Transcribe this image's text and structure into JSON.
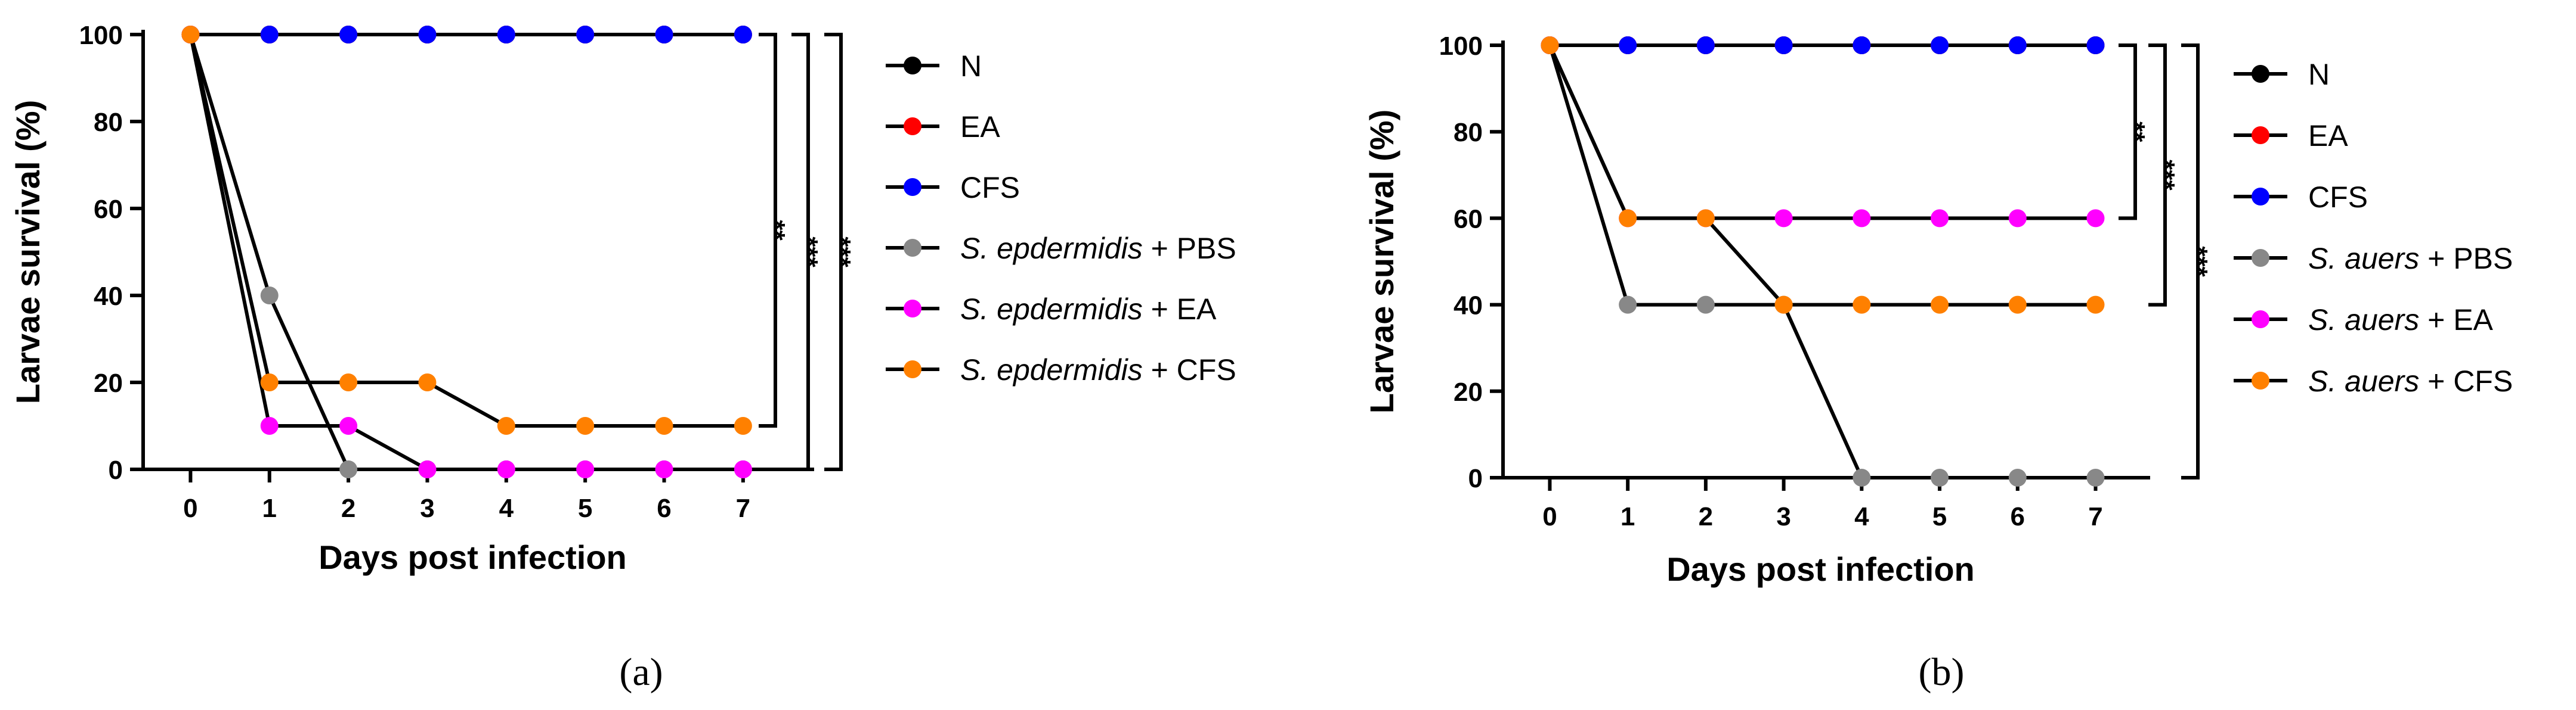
{
  "figure": {
    "panel_a_caption": "(a)",
    "panel_b_caption": "(b)"
  },
  "chart_data": [
    {
      "type": "line",
      "panel": "a",
      "xlabel": "Days post infection",
      "ylabel": "Larvae survival (%)",
      "xlim": [
        -0.6,
        7.9
      ],
      "ylim": [
        0,
        100
      ],
      "xticks": [
        0,
        1,
        2,
        3,
        4,
        5,
        6,
        7
      ],
      "yticks": [
        0,
        20,
        40,
        60,
        80,
        100
      ],
      "x": [
        0,
        1,
        2,
        3,
        4,
        5,
        6,
        7
      ],
      "series": [
        {
          "name": "N",
          "name_italic": "",
          "name_rest": "N",
          "color": "#000000",
          "values": [
            100,
            100,
            100,
            100,
            100,
            100,
            100,
            100
          ]
        },
        {
          "name": "EA",
          "name_italic": "",
          "name_rest": "EA",
          "color": "#ff0000",
          "values": [
            100,
            100,
            100,
            100,
            100,
            100,
            100,
            100
          ]
        },
        {
          "name": "CFS",
          "name_italic": "",
          "name_rest": "CFS",
          "color": "#0000ff",
          "values": [
            100,
            100,
            100,
            100,
            100,
            100,
            100,
            100
          ]
        },
        {
          "name": "S. epdermidis + PBS",
          "name_italic": "S. epdermidis",
          "name_rest": " + PBS",
          "color": "#888888",
          "values": [
            100,
            40,
            0,
            0,
            0,
            0,
            0,
            0
          ]
        },
        {
          "name": "S. epdermidis + EA",
          "name_italic": "S. epdermidis",
          "name_rest": " + EA",
          "color": "#ff00ff",
          "values": [
            100,
            10,
            10,
            0,
            0,
            0,
            0,
            0
          ]
        },
        {
          "name": "S. epdermidis + CFS",
          "name_italic": "S. epdermidis",
          "name_rest": " + CFS",
          "color": "#ff8000",
          "values": [
            100,
            20,
            20,
            20,
            10,
            10,
            10,
            10
          ]
        }
      ],
      "significance": [
        {
          "label": "**",
          "from": 100,
          "to": 10
        },
        {
          "label": "***",
          "from": 100,
          "to": 0
        },
        {
          "label": "***",
          "from": 100,
          "to": 0
        }
      ]
    },
    {
      "type": "line",
      "panel": "b",
      "xlabel": "Days post infection",
      "ylabel": "Larvae survival (%)",
      "xlim": [
        -0.6,
        7.7
      ],
      "ylim": [
        0,
        100
      ],
      "xticks": [
        0,
        1,
        2,
        3,
        4,
        5,
        6,
        7
      ],
      "yticks": [
        0,
        20,
        40,
        60,
        80,
        100
      ],
      "x": [
        0,
        1,
        2,
        3,
        4,
        5,
        6,
        7
      ],
      "series": [
        {
          "name": "N",
          "name_italic": "",
          "name_rest": "N",
          "color": "#000000",
          "values": [
            100,
            100,
            100,
            100,
            100,
            100,
            100,
            100
          ]
        },
        {
          "name": "EA",
          "name_italic": "",
          "name_rest": "EA",
          "color": "#ff0000",
          "values": [
            100,
            100,
            100,
            100,
            100,
            100,
            100,
            100
          ]
        },
        {
          "name": "CFS",
          "name_italic": "",
          "name_rest": "CFS",
          "color": "#0000ff",
          "values": [
            100,
            100,
            100,
            100,
            100,
            100,
            100,
            100
          ]
        },
        {
          "name": "S. auers + PBS",
          "name_italic": "S. auers",
          "name_rest": " + PBS",
          "color": "#888888",
          "values": [
            100,
            40,
            40,
            40,
            0,
            0,
            0,
            0
          ]
        },
        {
          "name": "S. auers + EA",
          "name_italic": "S. auers",
          "name_rest": " + EA",
          "color": "#ff00ff",
          "values": [
            100,
            60,
            60,
            60,
            60,
            60,
            60,
            60
          ]
        },
        {
          "name": "S. auers + CFS",
          "name_italic": "S. auers",
          "name_rest": " + CFS",
          "color": "#ff8000",
          "values": [
            100,
            60,
            60,
            40,
            40,
            40,
            40,
            40
          ]
        }
      ],
      "significance": [
        {
          "label": "**",
          "from": 100,
          "to": 60
        },
        {
          "label": "***",
          "from": 100,
          "to": 40
        },
        {
          "label": "***",
          "from": 100,
          "to": 0
        }
      ]
    }
  ]
}
